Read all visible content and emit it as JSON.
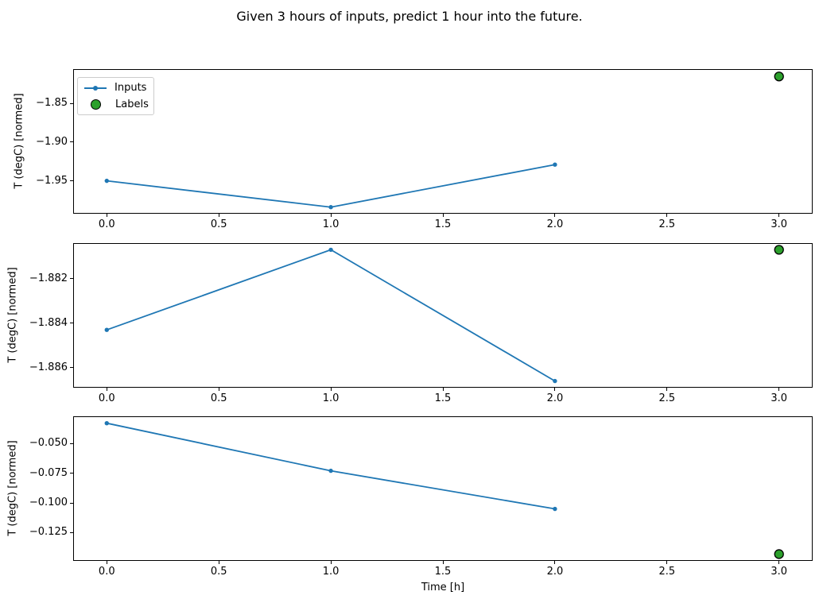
{
  "figure": {
    "title": "Given 3 hours of inputs, predict 1 hour into the future.",
    "legend": {
      "items": [
        {
          "label": "Inputs",
          "marker": "line-with-dot"
        },
        {
          "label": "Labels",
          "marker": "filled-circle"
        }
      ]
    }
  },
  "colors": {
    "inputs": "#1f77b4",
    "labels_fill": "#2ca02c",
    "labels_edge": "#000000",
    "axis": "#000000",
    "legend_border": "#cccccc"
  },
  "chart_data": [
    {
      "type": "line",
      "ylabel": "T (degC) [normed]",
      "xlabel": "",
      "series": [
        {
          "name": "Inputs",
          "type": "line+markers",
          "x": [
            0,
            1,
            2
          ],
          "y": [
            -1.95,
            -1.984,
            -1.929
          ]
        },
        {
          "name": "Labels",
          "type": "scatter",
          "x": [
            3
          ],
          "y": [
            -1.815
          ]
        }
      ],
      "xlim": [
        -0.15,
        3.15
      ],
      "ylim": [
        -1.9925,
        -1.8055
      ],
      "xticks": [
        0.0,
        0.5,
        1.0,
        1.5,
        2.0,
        2.5,
        3.0
      ],
      "xtick_labels": [
        "0.0",
        "0.5",
        "1.0",
        "1.5",
        "2.0",
        "2.5",
        "3.0"
      ],
      "yticks": [
        -1.85,
        -1.9,
        -1.95
      ],
      "ytick_labels": [
        "−1.85",
        "−1.90",
        "−1.95"
      ],
      "grid": false,
      "legend_position": "upper-left",
      "has_legend": true
    },
    {
      "type": "line",
      "ylabel": "T (degC) [normed]",
      "xlabel": "",
      "series": [
        {
          "name": "Inputs",
          "type": "line+markers",
          "x": [
            0,
            1,
            2
          ],
          "y": [
            -1.8843,
            -1.8807,
            -1.8866
          ]
        },
        {
          "name": "Labels",
          "type": "scatter",
          "x": [
            3
          ],
          "y": [
            -1.8807
          ]
        }
      ],
      "xlim": [
        -0.15,
        3.15
      ],
      "ylim": [
        -1.8869,
        -1.8804
      ],
      "xticks": [
        0.0,
        0.5,
        1.0,
        1.5,
        2.0,
        2.5,
        3.0
      ],
      "xtick_labels": [
        "0.0",
        "0.5",
        "1.0",
        "1.5",
        "2.0",
        "2.5",
        "3.0"
      ],
      "yticks": [
        -1.882,
        -1.884,
        -1.886
      ],
      "ytick_labels": [
        "−1.882",
        "−1.884",
        "−1.886"
      ],
      "grid": false,
      "has_legend": false
    },
    {
      "type": "line",
      "ylabel": "T (degC) [normed]",
      "xlabel": "Time [h]",
      "series": [
        {
          "name": "Inputs",
          "type": "line+markers",
          "x": [
            0,
            1,
            2
          ],
          "y": [
            -0.033,
            -0.073,
            -0.105
          ]
        },
        {
          "name": "Labels",
          "type": "scatter",
          "x": [
            3
          ],
          "y": [
            -0.143
          ]
        }
      ],
      "xlim": [
        -0.15,
        3.15
      ],
      "ylim": [
        -0.1487,
        -0.0272
      ],
      "xticks": [
        0.0,
        0.5,
        1.0,
        1.5,
        2.0,
        2.5,
        3.0
      ],
      "xtick_labels": [
        "0.0",
        "0.5",
        "1.0",
        "1.5",
        "2.0",
        "2.5",
        "3.0"
      ],
      "yticks": [
        -0.05,
        -0.075,
        -0.1,
        -0.125
      ],
      "ytick_labels": [
        "−0.050",
        "−0.075",
        "−0.100",
        "−0.125"
      ],
      "grid": false,
      "has_legend": false
    }
  ]
}
